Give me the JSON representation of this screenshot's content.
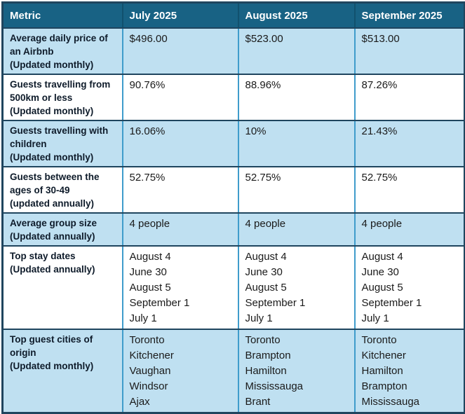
{
  "table": {
    "columns": [
      "Metric",
      "July 2025",
      "August 2025",
      "September 2025"
    ],
    "rows": [
      {
        "metric": "Average daily price of an Airbnb",
        "note": "(Updated monthly)",
        "values": [
          "$496.00",
          "$523.00",
          "$513.00"
        ]
      },
      {
        "metric": "Guests travelling from 500km or less",
        "note": "(Updated monthly)",
        "values": [
          "90.76%",
          "88.96%",
          "87.26%"
        ]
      },
      {
        "metric": "Guests travelling with children",
        "note": "(Updated monthly)",
        "values": [
          "16.06%",
          "10%",
          "21.43%"
        ]
      },
      {
        "metric": "Guests between the ages of 30-49",
        "note": "(updated annually)",
        "values": [
          "52.75%",
          "52.75%",
          "52.75%"
        ]
      },
      {
        "metric": "Average group size",
        "note": "(Updated annually)",
        "values": [
          "4 people",
          "4 people",
          "4 people"
        ]
      },
      {
        "metric": "Top stay dates",
        "note": "(Updated annually)",
        "values": [
          [
            "August 4",
            "June 30",
            "August 5",
            "September 1",
            "July 1"
          ],
          [
            "August 4",
            "June 30",
            "August 5",
            "September 1",
            "July 1"
          ],
          [
            "August 4",
            "June 30",
            "August 5",
            "September 1",
            "July 1"
          ]
        ]
      },
      {
        "metric": "Top guest cities of origin",
        "note": "(Updated monthly)",
        "values": [
          [
            "Toronto",
            "Kitchener",
            "Vaughan",
            "Windsor",
            "Ajax"
          ],
          [
            "Toronto",
            "Brampton",
            "Hamilton",
            "Mississauga",
            "Brant"
          ],
          [
            "Toronto",
            "Kitchener",
            "Hamilton",
            "Brampton",
            "Mississauga"
          ]
        ]
      }
    ],
    "colors": {
      "header_bg": "#186284",
      "header_text": "#FFFFFF",
      "row_alt_bg": "#BFE0F1",
      "row_bg": "#FFFFFF",
      "h_border": "#1F455E",
      "v_border": "#3F9CCB",
      "metric_text": "#0E1B2A",
      "value_text": "#1A1A1A"
    }
  }
}
